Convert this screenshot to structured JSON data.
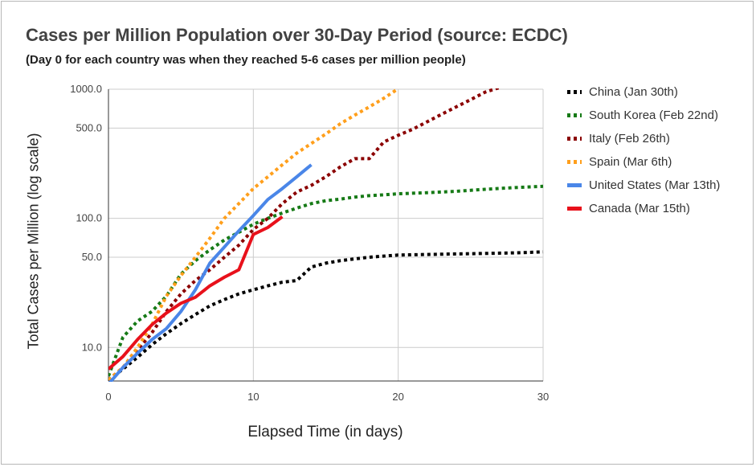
{
  "chart_data": {
    "type": "line",
    "title": "Cases per Million Population over 30-Day Period (source: ECDC)",
    "subtitle": "(Day 0 for each country was when they reached 5-6 cases per million people)",
    "xlabel": "Elapsed Time (in days)",
    "ylabel": "Total Cases per Million (log scale)",
    "xlim": [
      0,
      30
    ],
    "ylim": [
      5.5,
      1000
    ],
    "y_scale": "log",
    "x_ticks": [
      0,
      10,
      20,
      30
    ],
    "y_ticks": [
      10,
      50,
      100,
      500,
      1000
    ],
    "y_tick_labels": [
      "10.0",
      "50.0",
      "100.0",
      "500.0",
      "1000.0"
    ],
    "grid": true,
    "legend_position": "right",
    "series": [
      {
        "name": "China (Jan 30th)",
        "color": "#000000",
        "style": "dotted",
        "x": [
          0,
          1,
          2,
          3,
          4,
          5,
          6,
          7,
          8,
          9,
          10,
          11,
          12,
          13,
          14,
          15,
          16,
          17,
          18,
          19,
          20,
          22,
          24,
          26,
          28,
          30
        ],
        "y": [
          5.6,
          6.8,
          8.4,
          10.5,
          12.8,
          15.3,
          18,
          21,
          23.5,
          26,
          28,
          30,
          32,
          33,
          42,
          45,
          47,
          48.5,
          50,
          51,
          52,
          52.5,
          53,
          53.5,
          54,
          55
        ]
      },
      {
        "name": "South Korea (Feb 22nd)",
        "color": "#167a16",
        "style": "dotted",
        "x": [
          0,
          1,
          2,
          3,
          4,
          5,
          6,
          7,
          8,
          9,
          10,
          11,
          12,
          13,
          14,
          15,
          16,
          17,
          18,
          19,
          20,
          22,
          24,
          26,
          28,
          30
        ],
        "y": [
          6,
          12,
          16,
          19,
          25,
          37,
          47,
          57,
          68,
          78,
          90,
          100,
          110,
          120,
          130,
          137,
          141,
          146,
          150,
          152,
          155,
          158,
          162,
          168,
          173,
          177
        ]
      },
      {
        "name": "Italy (Feb 26th)",
        "color": "#8b0000",
        "style": "dotted",
        "x": [
          0,
          1,
          2,
          3,
          4,
          5,
          6,
          7,
          8,
          9,
          10,
          11,
          12,
          13,
          14,
          15,
          16,
          17,
          18,
          19,
          20,
          21,
          22,
          23,
          24,
          25,
          26,
          27
        ],
        "y": [
          5.6,
          7,
          9.5,
          13,
          19,
          26,
          33,
          40,
          50,
          62,
          82,
          100,
          130,
          160,
          180,
          210,
          250,
          290,
          290,
          390,
          440,
          490,
          560,
          640,
          730,
          830,
          950,
          1030
        ]
      },
      {
        "name": "Spain (Mar 6th)",
        "color": "#ff9f1c",
        "style": "dotted",
        "x": [
          0,
          1,
          2,
          3,
          4,
          5,
          6,
          7,
          8,
          9,
          10,
          11,
          12,
          13,
          14,
          15,
          16,
          17,
          18,
          19,
          20
        ],
        "y": [
          5.6,
          7,
          10,
          15,
          25,
          36,
          50,
          70,
          100,
          130,
          170,
          210,
          260,
          320,
          380,
          450,
          540,
          630,
          730,
          850,
          1010
        ]
      },
      {
        "name": "United States (Mar 13th)",
        "color": "#4a86e8",
        "style": "solid",
        "x": [
          0,
          1,
          2,
          3,
          4,
          5,
          6,
          7,
          8,
          9,
          10,
          11,
          12,
          13,
          14
        ],
        "y": [
          5.2,
          7,
          9,
          11.5,
          14,
          19,
          28,
          45,
          60,
          80,
          105,
          140,
          170,
          210,
          260
        ]
      },
      {
        "name": "Canada (Mar 15th)",
        "color": "#e8111b",
        "style": "solid",
        "x": [
          0,
          1,
          2,
          3,
          4,
          5,
          6,
          7,
          8,
          9,
          10,
          11,
          12
        ],
        "y": [
          6.8,
          8.5,
          11.5,
          15,
          18.5,
          22,
          24.5,
          30,
          35,
          40,
          75,
          85,
          103
        ]
      }
    ]
  }
}
